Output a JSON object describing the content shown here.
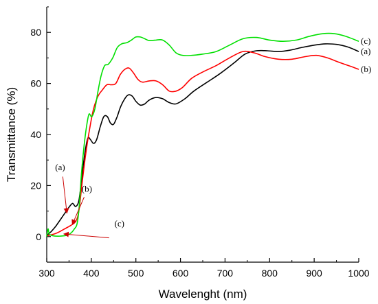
{
  "chart_data": {
    "type": "line",
    "xlabel": "Wavelenght (nm)",
    "ylabel": "Transmittance (%)",
    "xlim": [
      300,
      1000
    ],
    "ylim": [
      -10,
      90
    ],
    "xticks": [
      300,
      400,
      500,
      600,
      700,
      800,
      900,
      1000
    ],
    "yticks": [
      0,
      20,
      40,
      60,
      80
    ],
    "grid": false,
    "series": [
      {
        "name": "(a)",
        "color": "#000000",
        "points": [
          [
            300,
            0.5
          ],
          [
            310,
            2
          ],
          [
            320,
            4
          ],
          [
            330,
            6.5
          ],
          [
            340,
            9
          ],
          [
            350,
            11.5
          ],
          [
            358,
            13
          ],
          [
            365,
            11.8
          ],
          [
            372,
            14
          ],
          [
            378,
            22
          ],
          [
            385,
            32
          ],
          [
            392,
            38.5
          ],
          [
            398,
            38
          ],
          [
            405,
            36.5
          ],
          [
            412,
            38
          ],
          [
            420,
            43
          ],
          [
            428,
            47
          ],
          [
            436,
            47
          ],
          [
            443,
            44.5
          ],
          [
            450,
            44
          ],
          [
            458,
            47
          ],
          [
            466,
            51
          ],
          [
            475,
            54
          ],
          [
            483,
            55.5
          ],
          [
            492,
            55
          ],
          [
            500,
            53
          ],
          [
            510,
            51.5
          ],
          [
            520,
            52
          ],
          [
            530,
            53.5
          ],
          [
            545,
            54.5
          ],
          [
            560,
            54
          ],
          [
            575,
            52.5
          ],
          [
            590,
            52
          ],
          [
            610,
            54
          ],
          [
            630,
            57
          ],
          [
            660,
            60.5
          ],
          [
            690,
            64
          ],
          [
            720,
            68
          ],
          [
            745,
            71.5
          ],
          [
            770,
            72.8
          ],
          [
            795,
            72.8
          ],
          [
            820,
            72.5
          ],
          [
            845,
            73
          ],
          [
            870,
            74
          ],
          [
            900,
            75
          ],
          [
            925,
            75.5
          ],
          [
            950,
            75.3
          ],
          [
            975,
            74.3
          ],
          [
            1000,
            72.5
          ]
        ]
      },
      {
        "name": "(b)",
        "color": "#ff0000",
        "points": [
          [
            300,
            0.3
          ],
          [
            320,
            1.2
          ],
          [
            340,
            3
          ],
          [
            355,
            4.5
          ],
          [
            365,
            6
          ],
          [
            372,
            10
          ],
          [
            380,
            22
          ],
          [
            388,
            33
          ],
          [
            396,
            42
          ],
          [
            405,
            50
          ],
          [
            415,
            55
          ],
          [
            425,
            57.5
          ],
          [
            435,
            59.5
          ],
          [
            445,
            59.5
          ],
          [
            455,
            60
          ],
          [
            465,
            63.5
          ],
          [
            475,
            65.5
          ],
          [
            485,
            66
          ],
          [
            495,
            64
          ],
          [
            505,
            61.5
          ],
          [
            515,
            60.5
          ],
          [
            530,
            61
          ],
          [
            545,
            61
          ],
          [
            560,
            59.5
          ],
          [
            575,
            57
          ],
          [
            590,
            57
          ],
          [
            605,
            58.5
          ],
          [
            625,
            62
          ],
          [
            650,
            64.5
          ],
          [
            680,
            67
          ],
          [
            710,
            70
          ],
          [
            740,
            72.5
          ],
          [
            765,
            72
          ],
          [
            790,
            70.5
          ],
          [
            820,
            69.5
          ],
          [
            850,
            69.5
          ],
          [
            880,
            70.5
          ],
          [
            905,
            71
          ],
          [
            930,
            70
          ],
          [
            960,
            68
          ],
          [
            985,
            66.5
          ],
          [
            1000,
            65.5
          ]
        ]
      },
      {
        "name": "(c)",
        "color": "#00e000",
        "points": [
          [
            300,
            0
          ],
          [
            303,
            3
          ],
          [
            306,
            1
          ],
          [
            315,
            0.3
          ],
          [
            330,
            0.2
          ],
          [
            345,
            0.5
          ],
          [
            355,
            1.5
          ],
          [
            362,
            3
          ],
          [
            368,
            5
          ],
          [
            373,
            12
          ],
          [
            378,
            25
          ],
          [
            384,
            36
          ],
          [
            390,
            44
          ],
          [
            395,
            48
          ],
          [
            401,
            47
          ],
          [
            408,
            50
          ],
          [
            415,
            57
          ],
          [
            422,
            63
          ],
          [
            430,
            67
          ],
          [
            438,
            67.5
          ],
          [
            448,
            70
          ],
          [
            458,
            74
          ],
          [
            468,
            75.5
          ],
          [
            480,
            76
          ],
          [
            490,
            77
          ],
          [
            500,
            78.2
          ],
          [
            510,
            78.2
          ],
          [
            520,
            77.5
          ],
          [
            530,
            76.8
          ],
          [
            545,
            77
          ],
          [
            560,
            77
          ],
          [
            575,
            75
          ],
          [
            590,
            72
          ],
          [
            605,
            71
          ],
          [
            625,
            71
          ],
          [
            650,
            71.5
          ],
          [
            680,
            72.5
          ],
          [
            710,
            75
          ],
          [
            740,
            77.5
          ],
          [
            770,
            78
          ],
          [
            800,
            77
          ],
          [
            830,
            76.5
          ],
          [
            860,
            77
          ],
          [
            890,
            78.5
          ],
          [
            920,
            79.5
          ],
          [
            945,
            79.5
          ],
          [
            970,
            78.5
          ],
          [
            1000,
            76.5
          ]
        ]
      }
    ],
    "annotations": [
      {
        "label": "(a)",
        "text_at": [
          330,
          26
        ],
        "arrow_from": [
          336,
          23.5
        ],
        "arrow_to": [
          345,
          9.5
        ]
      },
      {
        "label": "(b)",
        "text_at": [
          390,
          17.5
        ],
        "arrow_from": [
          384,
          15.5
        ],
        "arrow_to": [
          358,
          5
        ]
      },
      {
        "label": "(c)",
        "text_at": [
          463,
          4
        ],
        "arrow_from": [
          440,
          -0.5
        ],
        "arrow_to": [
          340,
          1
        ]
      }
    ],
    "arrow_color": "#cc0000"
  }
}
